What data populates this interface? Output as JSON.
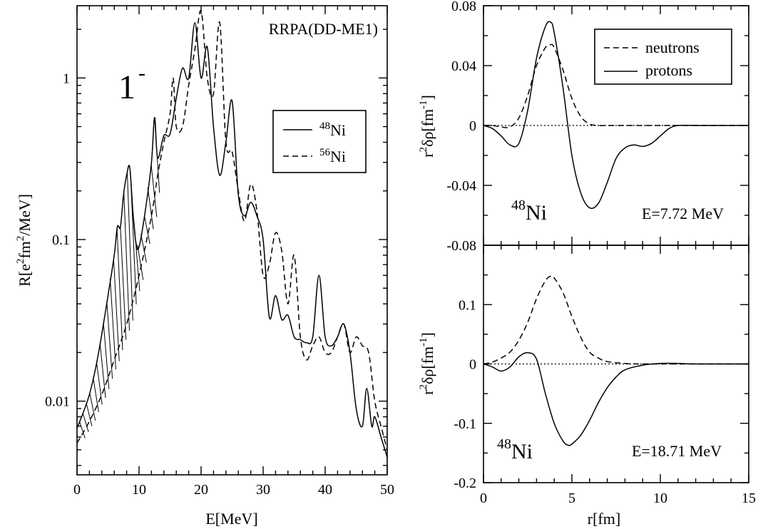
{
  "chart_data": [
    {
      "type": "line",
      "panel": "left",
      "xlabel": "E[MeV]",
      "ylabel": "R[e²fm²/MeV]",
      "ylabel_parts": {
        "a": "R[e",
        "b": "2",
        "c": "fm",
        "d": "2",
        "e": "/MeV]"
      },
      "scale_y": "log",
      "xlim": [
        0,
        50
      ],
      "ylim": [
        0.0035,
        2.8
      ],
      "xticks": [
        "0",
        "10",
        "20",
        "30",
        "40",
        "50"
      ],
      "yticks": [
        "0.01",
        "0.1",
        "1"
      ],
      "annotation_model": "RRPA(DD-ME1)",
      "annotation_multipole": {
        "base": "1",
        "sup": "-"
      },
      "legend": [
        {
          "sup": "48",
          "text": "Ni",
          "style": "solid"
        },
        {
          "sup": "56",
          "text": "Ni",
          "style": "dashed"
        }
      ],
      "legend_position": "upper-right",
      "hatched_region": "between 48Ni and 56Ni, E < 13 MeV",
      "series": [
        {
          "name": "48Ni",
          "style": "solid",
          "x": [
            0,
            1,
            2,
            3,
            4,
            5,
            6,
            6.5,
            7,
            7.5,
            8,
            8.5,
            9,
            9.5,
            10,
            11,
            12,
            12.5,
            13,
            14,
            15,
            16,
            17,
            18,
            19,
            20,
            21,
            22,
            23,
            24,
            25,
            26,
            27,
            28,
            29,
            30,
            31,
            32,
            33,
            34,
            35,
            36,
            37,
            38,
            39,
            40,
            41,
            42,
            43,
            44,
            45,
            46,
            46.7,
            47.5,
            48,
            49,
            50
          ],
          "y": [
            0.0068,
            0.0085,
            0.011,
            0.016,
            0.026,
            0.045,
            0.08,
            0.12,
            0.12,
            0.19,
            0.25,
            0.28,
            0.15,
            0.095,
            0.09,
            0.15,
            0.3,
            0.57,
            0.32,
            0.44,
            0.45,
            0.75,
            1.15,
            1.0,
            2.2,
            1.0,
            1.55,
            0.5,
            0.25,
            0.4,
            0.72,
            0.19,
            0.14,
            0.17,
            0.14,
            0.1,
            0.033,
            0.045,
            0.032,
            0.034,
            0.025,
            0.024,
            0.023,
            0.025,
            0.06,
            0.025,
            0.022,
            0.025,
            0.03,
            0.02,
            0.009,
            0.007,
            0.012,
            0.007,
            0.008,
            0.006,
            0.0045
          ]
        },
        {
          "name": "56Ni",
          "style": "dashed",
          "x": [
            0,
            2,
            4,
            6,
            8,
            10,
            12,
            13,
            14,
            15,
            15.5,
            16,
            17,
            18,
            19,
            20,
            21,
            22,
            23,
            24,
            25,
            26,
            27,
            28,
            29,
            30,
            31,
            32,
            33,
            34,
            35,
            36,
            37,
            38,
            39,
            40,
            41,
            42,
            43,
            44,
            45,
            46,
            47,
            48,
            49,
            50
          ],
          "y": [
            0.0055,
            0.0075,
            0.011,
            0.018,
            0.03,
            0.06,
            0.14,
            0.25,
            0.4,
            0.6,
            1.0,
            0.5,
            0.5,
            0.9,
            1.5,
            2.6,
            1.0,
            0.8,
            2.2,
            0.4,
            0.35,
            0.2,
            0.13,
            0.22,
            0.15,
            0.06,
            0.07,
            0.11,
            0.085,
            0.04,
            0.08,
            0.025,
            0.018,
            0.022,
            0.025,
            0.02,
            0.02,
            0.025,
            0.03,
            0.02,
            0.025,
            0.022,
            0.02,
            0.01,
            0.007,
            0.005
          ]
        }
      ]
    },
    {
      "type": "line",
      "panel": "right-top",
      "ylabel_parts": {
        "a": "r",
        "b": "2",
        "c": "δρ[fm",
        "d": "-1",
        "e": "]"
      },
      "xlim": [
        0,
        15
      ],
      "ylim": [
        -0.08,
        0.08
      ],
      "yticks": [
        "-0.08",
        "-0.04",
        "0",
        "0.04",
        "0.08"
      ],
      "annotation_nucleus": {
        "sup": "48",
        "text": "Ni"
      },
      "annotation_energy": "E=7.72 MeV",
      "legend": [
        {
          "text": "neutrons",
          "style": "dashed"
        },
        {
          "text": "protons",
          "style": "solid"
        }
      ],
      "legend_position": "upper-right",
      "series": [
        {
          "name": "neutrons",
          "style": "dashed",
          "x": [
            0,
            0.5,
            1,
            1.5,
            2,
            2.5,
            3,
            3.5,
            3.8,
            4,
            4.5,
            5,
            5.5,
            6,
            6.5,
            7,
            8,
            10,
            15
          ],
          "y": [
            0,
            0,
            -0.001,
            -0.001,
            0.005,
            0.02,
            0.04,
            0.052,
            0.054,
            0.052,
            0.037,
            0.018,
            0.006,
            0.001,
            0,
            0,
            0,
            0,
            0
          ]
        },
        {
          "name": "protons",
          "style": "solid",
          "x": [
            0,
            0.5,
            1,
            1.5,
            2,
            2.5,
            3,
            3.5,
            3.8,
            4,
            4.5,
            5,
            5.5,
            6,
            6.5,
            7,
            7.5,
            8,
            8.5,
            9,
            9.5,
            10,
            10.5,
            11,
            12,
            15
          ],
          "y": [
            0,
            -0.002,
            -0.007,
            -0.013,
            -0.012,
            0.01,
            0.045,
            0.066,
            0.069,
            0.062,
            0.025,
            -0.02,
            -0.045,
            -0.055,
            -0.052,
            -0.038,
            -0.022,
            -0.015,
            -0.013,
            -0.014,
            -0.012,
            -0.007,
            -0.002,
            0,
            0,
            0
          ]
        }
      ]
    },
    {
      "type": "line",
      "panel": "right-bottom",
      "xlabel": "r[fm]",
      "ylabel_parts": {
        "a": "r",
        "b": "2",
        "c": "δρ[fm",
        "d": "-1",
        "e": "]"
      },
      "xlim": [
        0,
        15
      ],
      "ylim": [
        -0.2,
        0.2
      ],
      "xticks": [
        "0",
        "5",
        "10",
        "15"
      ],
      "yticks": [
        "-0.2",
        "-0.1",
        "0",
        "0.1"
      ],
      "annotation_nucleus": {
        "sup": "48",
        "text": "Ni"
      },
      "annotation_energy": "E=18.71 MeV",
      "series": [
        {
          "name": "neutrons",
          "style": "dashed",
          "x": [
            0,
            0.5,
            1,
            1.5,
            2,
            2.5,
            3,
            3.5,
            3.8,
            4,
            4.5,
            5,
            5.5,
            6,
            6.5,
            7,
            8,
            9,
            15
          ],
          "y": [
            0,
            0.003,
            0.01,
            0.02,
            0.04,
            0.07,
            0.11,
            0.14,
            0.148,
            0.145,
            0.12,
            0.08,
            0.045,
            0.02,
            0.01,
            0.004,
            0.001,
            0,
            0
          ]
        },
        {
          "name": "protons",
          "style": "solid",
          "x": [
            0,
            0.5,
            1,
            1.5,
            2,
            2.5,
            3,
            3.5,
            4,
            4.5,
            4.8,
            5,
            5.5,
            6,
            6.5,
            7,
            7.5,
            8,
            9,
            10,
            11,
            12,
            15
          ],
          "y": [
            0,
            -0.005,
            -0.012,
            -0.005,
            0.012,
            0.019,
            0.008,
            -0.05,
            -0.1,
            -0.13,
            -0.137,
            -0.135,
            -0.12,
            -0.095,
            -0.065,
            -0.04,
            -0.022,
            -0.01,
            -0.002,
            0.001,
            0.001,
            0,
            0
          ]
        }
      ]
    }
  ]
}
